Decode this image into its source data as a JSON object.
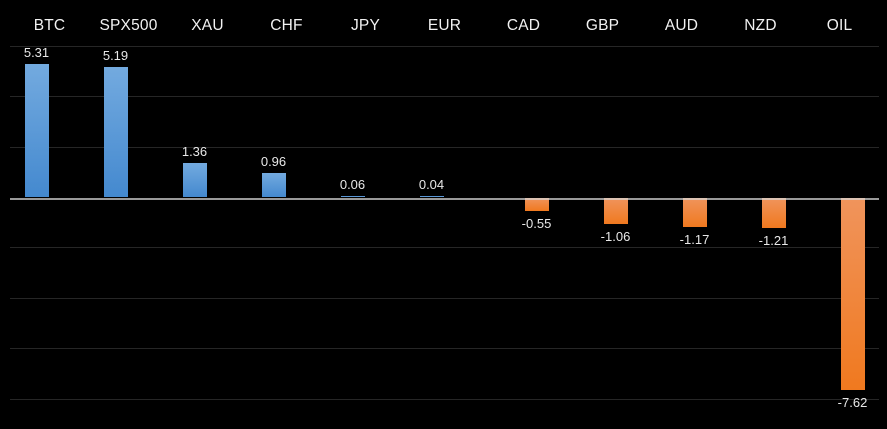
{
  "chart_data": {
    "type": "bar",
    "categories": [
      "BTC",
      "SPX500",
      "XAU",
      "CHF",
      "JPY",
      "EUR",
      "CAD",
      "GBP",
      "AUD",
      "NZD",
      "OIL"
    ],
    "values": [
      5.31,
      5.19,
      1.36,
      0.96,
      0.06,
      0.04,
      -0.55,
      -1.06,
      -1.17,
      -1.21,
      -7.62
    ],
    "value_labels": [
      "5.31",
      "5.19",
      "1.36",
      "0.96",
      "0.06",
      "0.04",
      "-0.55",
      "-1.06",
      "-1.17",
      "-1.21",
      "-7.62"
    ],
    "title": "",
    "xlabel": "",
    "ylabel": "",
    "ylim": [
      -8,
      6
    ],
    "gridline_step": 2,
    "grid": "horizontal",
    "legend": "none",
    "category_labels_position": "top",
    "value_labels_position": "outside-end",
    "colors": {
      "background": "#000000",
      "positive_bar_top": "#73aadf",
      "positive_bar_bottom": "#4489cf",
      "negative_bar_top": "#f0945c",
      "negative_bar_bottom": "#f0791f",
      "gridline": "#262626",
      "zero_line": "#d6d6d6",
      "category_label": "#f2f2f2",
      "value_label": "#e8e8e8"
    }
  }
}
